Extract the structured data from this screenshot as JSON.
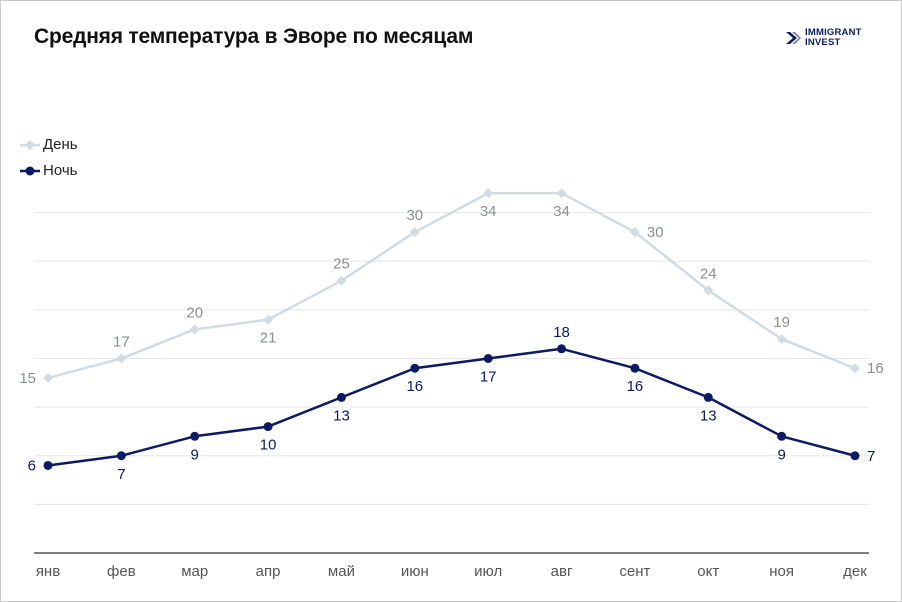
{
  "title": "Средняя температура в Эворе по месяцам",
  "logo": {
    "line1": "IMMIGRANT",
    "line2": "INVEST"
  },
  "colors": {
    "day": "#d1dbe3",
    "day_label": "#8a8f94",
    "night": "#0c1a63",
    "grid": "#e6e6e6",
    "axis": "#333333",
    "tick": "#555555"
  },
  "chart_data": {
    "type": "line",
    "title": "Средняя температура в Эворе по месяцам",
    "categories": [
      "янв",
      "фев",
      "мар",
      "апр",
      "май",
      "июн",
      "июл",
      "авг",
      "сент",
      "окт",
      "ноя",
      "дек"
    ],
    "series": [
      {
        "name": "День",
        "marker": "diamond",
        "values": [
          15,
          17,
          20,
          21,
          25,
          30,
          34,
          34,
          30,
          24,
          19,
          16
        ]
      },
      {
        "name": "Ночь",
        "marker": "circle",
        "values": [
          6,
          7,
          9,
          10,
          13,
          16,
          17,
          18,
          16,
          13,
          9,
          7
        ]
      }
    ],
    "ylim": [
      -3,
      37
    ],
    "grid": true,
    "legend": "top-left"
  }
}
